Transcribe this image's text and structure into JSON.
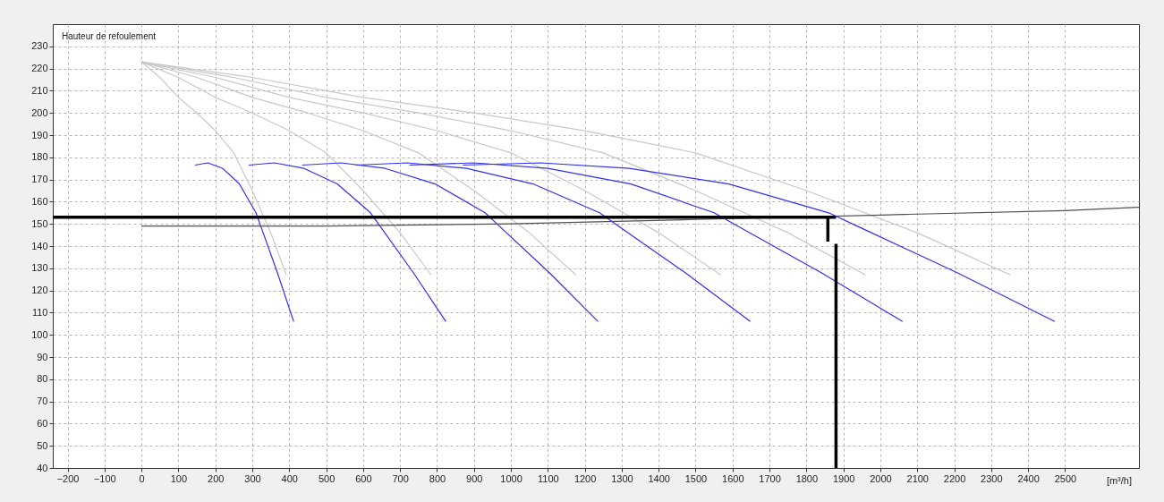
{
  "chart_data": {
    "type": "line",
    "ylabel": "Hauteur de refoulement",
    "xlabel": "[m³/h]",
    "xlim": [
      -240,
      2700
    ],
    "ylim": [
      40,
      240
    ],
    "xticks": [
      -200,
      -100,
      0,
      100,
      200,
      300,
      400,
      500,
      600,
      700,
      800,
      900,
      1000,
      1100,
      1200,
      1300,
      1400,
      1500,
      1600,
      1700,
      1800,
      1900,
      2000,
      2100,
      2200,
      2300,
      2400,
      2500
    ],
    "yticks": [
      40,
      50,
      60,
      70,
      80,
      90,
      100,
      110,
      120,
      130,
      140,
      150,
      160,
      170,
      180,
      190,
      200,
      210,
      220,
      230
    ],
    "grid": true,
    "legend": false,
    "marker": "none",
    "line_style": "solid",
    "series": [
      {
        "type": "line",
        "color": "#c8c8c8",
        "x": [
          0,
          50,
          100,
          150,
          200,
          250,
          300,
          350,
          392
        ],
        "values": [
          223,
          216,
          207,
          200,
          192,
          182,
          165,
          146,
          127
        ]
      },
      {
        "type": "line",
        "color": "#c8c8c8",
        "x": [
          0,
          100,
          200,
          300,
          400,
          500,
          600,
          700,
          784
        ],
        "values": [
          223,
          216,
          207,
          200,
          192,
          182,
          165,
          146,
          127
        ]
      },
      {
        "type": "line",
        "color": "#c8c8c8",
        "x": [
          0,
          150,
          300,
          450,
          600,
          750,
          900,
          1050,
          1176
        ],
        "values": [
          223,
          216,
          207,
          200,
          192,
          182,
          165,
          146,
          127
        ]
      },
      {
        "type": "line",
        "color": "#c8c8c8",
        "x": [
          0,
          200,
          400,
          600,
          800,
          1000,
          1200,
          1400,
          1568
        ],
        "values": [
          223,
          216,
          207,
          200,
          192,
          182,
          165,
          146,
          127
        ]
      },
      {
        "type": "line",
        "color": "#c8c8c8",
        "x": [
          0,
          250,
          500,
          750,
          1000,
          1250,
          1500,
          1750,
          1960
        ],
        "values": [
          223,
          216,
          207,
          200,
          192,
          182,
          165,
          146,
          127
        ]
      },
      {
        "type": "line",
        "color": "#c8c8c8",
        "x": [
          0,
          300,
          600,
          900,
          1200,
          1500,
          1800,
          2100,
          2352
        ],
        "values": [
          223,
          216,
          207,
          200,
          192,
          182,
          165,
          146,
          127
        ]
      },
      {
        "type": "line",
        "color": "#3030f0",
        "x": [
          145,
          180,
          220,
          265,
          310,
          325,
          368,
          412
        ],
        "values": [
          176.5,
          177.5,
          175,
          168,
          155,
          148,
          128,
          106
        ]
      },
      {
        "type": "line",
        "color": "#3030f0",
        "x": [
          290,
          360,
          440,
          530,
          620,
          650,
          736,
          824
        ],
        "values": [
          176.5,
          177.5,
          175,
          168,
          155,
          148,
          128,
          106
        ]
      },
      {
        "type": "line",
        "color": "#3030f0",
        "x": [
          435,
          540,
          660,
          795,
          930,
          975,
          1104,
          1236
        ],
        "values": [
          176.5,
          177.5,
          175,
          168,
          155,
          148,
          128,
          106
        ]
      },
      {
        "type": "line",
        "color": "#3030f0",
        "x": [
          580,
          720,
          880,
          1060,
          1240,
          1300,
          1472,
          1648
        ],
        "values": [
          176.5,
          177.5,
          175,
          168,
          155,
          148,
          128,
          106
        ]
      },
      {
        "type": "line",
        "color": "#3030f0",
        "x": [
          725,
          900,
          1100,
          1325,
          1550,
          1625,
          1840,
          2060
        ],
        "values": [
          176.5,
          177.5,
          175,
          168,
          155,
          148,
          128,
          106
        ]
      },
      {
        "type": "line",
        "color": "#3030f0",
        "x": [
          870,
          1080,
          1320,
          1590,
          1860,
          1950,
          2208,
          2472
        ],
        "values": [
          176.5,
          177.5,
          175,
          168,
          155,
          148,
          128,
          106
        ]
      },
      {
        "type": "line",
        "color": "#505050",
        "x": [
          0,
          500,
          1000,
          1500,
          2000,
          2500,
          2700
        ],
        "values": [
          149,
          149,
          150,
          152,
          154,
          156,
          157.5
        ]
      },
      {
        "type": "line",
        "color": "#000000",
        "x": [
          -240,
          1880
        ],
        "values": [
          153,
          153
        ]
      },
      {
        "type": "line",
        "color": "#000000",
        "x": [
          1880,
          1880
        ],
        "values": [
          40,
          141
        ]
      },
      {
        "type": "line",
        "color": "#000000",
        "x": [
          1858,
          1858
        ],
        "values": [
          153,
          142
        ]
      }
    ]
  }
}
